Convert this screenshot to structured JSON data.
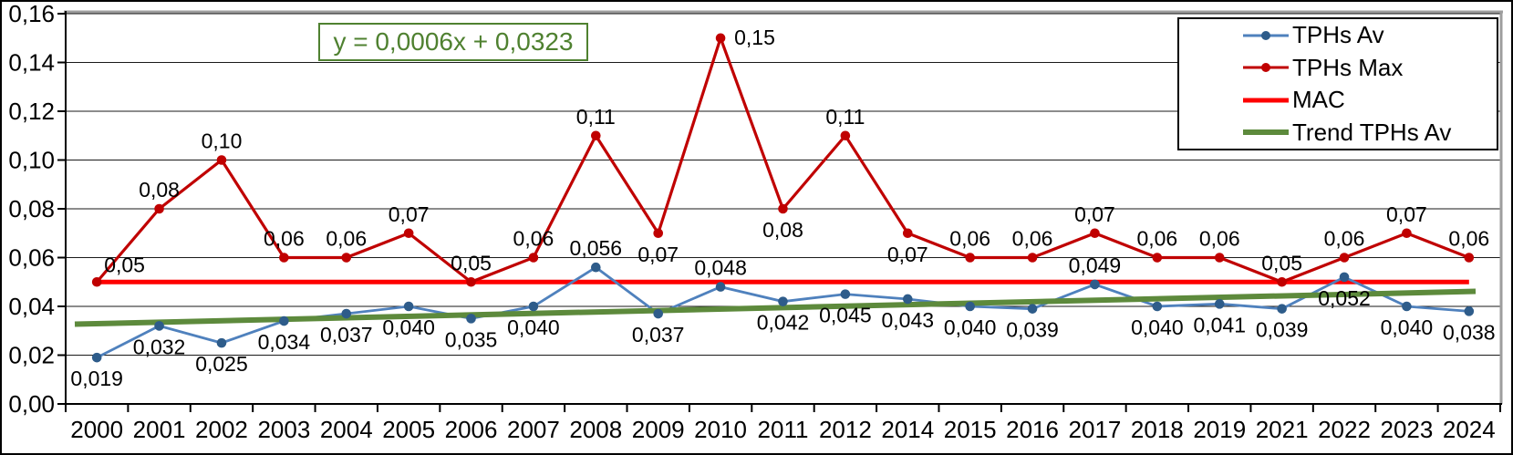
{
  "chart_data": {
    "type": "line",
    "title": "",
    "xlabel": "",
    "ylabel": "",
    "categories": [
      "2000",
      "2001",
      "2002",
      "2003",
      "2004",
      "2005",
      "2006",
      "2007",
      "2008",
      "2009",
      "2010",
      "2011",
      "2012",
      "2014",
      "2015",
      "2016",
      "2017",
      "2018",
      "2019",
      "2021",
      "2022",
      "2023",
      "2024"
    ],
    "y_axis": {
      "min": 0,
      "max": 0.16,
      "step": 0.02,
      "tick_labels": [
        "0,00",
        "0,02",
        "0,04",
        "0,06",
        "0,08",
        "0,10",
        "0,12",
        "0,14",
        "0,16"
      ]
    },
    "grid": true,
    "legend_position": "top-right",
    "equation": "y = 0,0006x + 0,0323",
    "series": [
      {
        "name": "TPHs Av",
        "kind": "line-markers",
        "line_color": "#4f81bd",
        "marker_color": "#2e5c8a",
        "label_color": "#1f497d",
        "values": [
          0.019,
          0.032,
          0.025,
          0.034,
          0.037,
          0.04,
          0.035,
          0.04,
          0.056,
          0.037,
          0.048,
          0.042,
          0.045,
          0.043,
          0.04,
          0.039,
          0.049,
          0.04,
          0.041,
          0.039,
          0.052,
          0.04,
          0.038
        ],
        "labels": [
          "0,019",
          "0,032",
          "0,025",
          "0,034",
          "0,037",
          "0,040",
          "0,035",
          "0,040",
          "0,056",
          "0,037",
          "0,048",
          "0,042",
          "0,045",
          "0,043",
          "0,040",
          "0,039",
          "0,049",
          "0,040",
          "0,041",
          "0,039",
          "0,052",
          "0,040",
          "0,038"
        ],
        "label_side": [
          "below",
          "below",
          "below",
          "below",
          "below",
          "below",
          "below",
          "below",
          "above",
          "below",
          "above",
          "below",
          "below",
          "below",
          "below",
          "below",
          "above",
          "below",
          "below",
          "below",
          "below",
          "below",
          "below"
        ]
      },
      {
        "name": "TPHs Max",
        "kind": "line-markers",
        "line_color": "#c00000",
        "marker_color": "#c00000",
        "label_color": "#c00000",
        "values": [
          0.05,
          0.08,
          0.1,
          0.06,
          0.06,
          0.07,
          0.05,
          0.06,
          0.11,
          0.07,
          0.15,
          0.08,
          0.11,
          0.07,
          0.06,
          0.06,
          0.07,
          0.06,
          0.06,
          0.05,
          0.06,
          0.07,
          0.06
        ],
        "labels": [
          "0,05",
          "0,08",
          "0,10",
          "0,06",
          "0,06",
          "0,07",
          "0,05",
          "0,06",
          "0,11",
          "0,07",
          "0,15",
          "0,08",
          "0,11",
          "0,07",
          "0,06",
          "0,06",
          "0,07",
          "0,06",
          "0,06",
          "0,05",
          "0,06",
          "0,07",
          "0,06"
        ],
        "label_side": [
          "above-right",
          "above",
          "above",
          "above",
          "above",
          "above",
          "above",
          "above",
          "above",
          "below",
          "right",
          "below",
          "above",
          "below",
          "above",
          "above",
          "above",
          "above",
          "above",
          "above",
          "above",
          "above",
          "above"
        ]
      },
      {
        "name": "MAC",
        "kind": "hline",
        "line_color": "#fe0000",
        "value": 0.05
      },
      {
        "name": "Trend TPHs Av",
        "kind": "trend",
        "line_color": "#5d8a3c",
        "slope": 0.0006,
        "intercept": 0.0323
      }
    ]
  }
}
